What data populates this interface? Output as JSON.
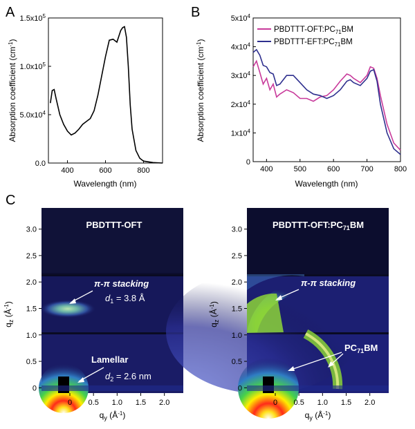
{
  "panels": [
    {
      "id": "A",
      "label": "A"
    },
    {
      "id": "B",
      "label": "B"
    },
    {
      "id": "C",
      "label": "C"
    }
  ],
  "chart_data": [
    {
      "panel": "A",
      "type": "line",
      "xlabel": "Wavelength (nm)",
      "ylabel": "Absorption coefficient (cm",
      "ylabel_sup": "-1",
      "ylabel_end": ")",
      "xlim": [
        300,
        900
      ],
      "ylim": [
        0,
        150000
      ],
      "xticks": [
        400,
        600,
        800
      ],
      "yticks": [
        {
          "v": 0,
          "m": "0.0",
          "e": ""
        },
        {
          "v": 50000,
          "m": "5.0x10",
          "e": "4"
        },
        {
          "v": 100000,
          "m": "1.0x10",
          "e": "5"
        },
        {
          "v": 150000,
          "m": "1.5x10",
          "e": "5"
        }
      ],
      "series": [
        {
          "color": "#000000",
          "x": [
            310,
            320,
            330,
            340,
            360,
            380,
            400,
            420,
            440,
            460,
            480,
            500,
            520,
            540,
            560,
            580,
            600,
            620,
            640,
            660,
            680,
            690,
            700,
            710,
            720,
            730,
            740,
            760,
            780,
            800,
            850,
            900
          ],
          "y": [
            62000,
            75000,
            76000,
            67000,
            50000,
            40000,
            33000,
            29000,
            31000,
            35000,
            40000,
            43000,
            46000,
            54000,
            70000,
            90000,
            110000,
            127000,
            128000,
            125000,
            137000,
            140000,
            141000,
            130000,
            100000,
            60000,
            35000,
            13000,
            5000,
            2000,
            500,
            0
          ]
        }
      ]
    },
    {
      "panel": "B",
      "type": "line",
      "xlabel": "Wavelength (nm)",
      "ylabel": "Absorption coefficient (cm",
      "ylabel_sup": "-1",
      "ylabel_end": ")",
      "xlim": [
        360,
        800
      ],
      "ylim": [
        0,
        50000
      ],
      "xticks": [
        400,
        500,
        600,
        700,
        800
      ],
      "yticks": [
        {
          "v": 0,
          "m": "0",
          "e": ""
        },
        {
          "v": 10000,
          "m": "1x10",
          "e": "4"
        },
        {
          "v": 20000,
          "m": "2x10",
          "e": "4"
        },
        {
          "v": 30000,
          "m": "3x10",
          "e": "4"
        },
        {
          "v": 40000,
          "m": "4x10",
          "e": "4"
        },
        {
          "v": 50000,
          "m": "5x10",
          "e": "4"
        }
      ],
      "legend_position": "top-right",
      "series": [
        {
          "name": "PBDTTT-OFT:PC",
          "name_sub": "71",
          "name_end": "BM",
          "color": "#c8399a",
          "x": [
            360,
            370,
            380,
            390,
            400,
            410,
            420,
            430,
            440,
            460,
            480,
            500,
            520,
            540,
            560,
            580,
            600,
            620,
            640,
            650,
            660,
            680,
            700,
            710,
            720,
            730,
            740,
            760,
            780,
            800
          ],
          "y": [
            33000,
            35000,
            31000,
            27000,
            29000,
            25000,
            27000,
            22500,
            23500,
            25000,
            24000,
            22000,
            22000,
            21000,
            22500,
            23000,
            25000,
            28000,
            30500,
            30000,
            29000,
            27500,
            30000,
            33000,
            32500,
            29000,
            23000,
            13000,
            6500,
            4000
          ]
        },
        {
          "name": "PBDTTT-EFT:PC",
          "name_sub": "71",
          "name_end": "BM",
          "color": "#2e2f8e",
          "x": [
            360,
            370,
            380,
            390,
            400,
            410,
            420,
            430,
            440,
            460,
            480,
            500,
            520,
            540,
            560,
            580,
            600,
            620,
            640,
            650,
            660,
            680,
            700,
            710,
            720,
            730,
            740,
            760,
            780,
            800
          ],
          "y": [
            38000,
            39000,
            37000,
            33500,
            33000,
            31000,
            30500,
            26500,
            27000,
            30000,
            30000,
            27500,
            25000,
            23500,
            23000,
            22000,
            23000,
            25000,
            28000,
            28500,
            27500,
            26500,
            29000,
            31500,
            32000,
            28000,
            20000,
            10000,
            4500,
            2500
          ]
        }
      ]
    },
    {
      "panel": "C-left",
      "type": "heatmap",
      "title": "PBDTTT-OFT",
      "xlabel": "q",
      "xlabel_sub": "y",
      "xlabel_end": " (Å",
      "xlabel_sup": "-1",
      "xlabel_close": ")",
      "ylabel": "q",
      "ylabel_sub": "z",
      "ylabel_end": " (Å",
      "ylabel_sup": "-1",
      "ylabel_close": ")",
      "xlim": [
        -0.6,
        2.4
      ],
      "ylim": [
        -0.1,
        3.4
      ],
      "xticks": [
        "0",
        "0.5",
        "1.0",
        "1.5",
        "2.0"
      ],
      "yticks": [
        "0",
        "0.5",
        "1.0",
        "1.5",
        "2.0",
        "2.5",
        "3.0"
      ],
      "annotations": {
        "pi": "π-π stacking",
        "d1_pre": "d",
        "d1_sub": "1",
        "d1_post": " = 3.8 Å",
        "lamellar": "Lamellar",
        "d2_pre": "d",
        "d2_sub": "2",
        "d2_post": " = 2.6 nm"
      }
    },
    {
      "panel": "C-right",
      "type": "heatmap",
      "title": "PBDTTT-OFT:PC",
      "title_sub": "71",
      "title_end": "BM",
      "xlabel": "q",
      "xlabel_sub": "y",
      "xlabel_end": " (Å",
      "xlabel_sup": "-1",
      "xlabel_close": ")",
      "ylabel": "q",
      "ylabel_sub": "z",
      "ylabel_end": " (Å",
      "ylabel_sup": "-1",
      "ylabel_close": ")",
      "xlim": [
        -0.6,
        2.4
      ],
      "ylim": [
        -0.1,
        3.4
      ],
      "xticks": [
        "0",
        "0.5",
        "1.0",
        "1.5",
        "2.0"
      ],
      "yticks": [
        "0",
        "0.5",
        "1.0",
        "1.5",
        "2.0",
        "2.5",
        "3.0"
      ],
      "annotations": {
        "pi": "π-π stacking",
        "pcbm": "PC",
        "pcbm_sub": "71",
        "pcbm_end": "BM"
      }
    }
  ]
}
